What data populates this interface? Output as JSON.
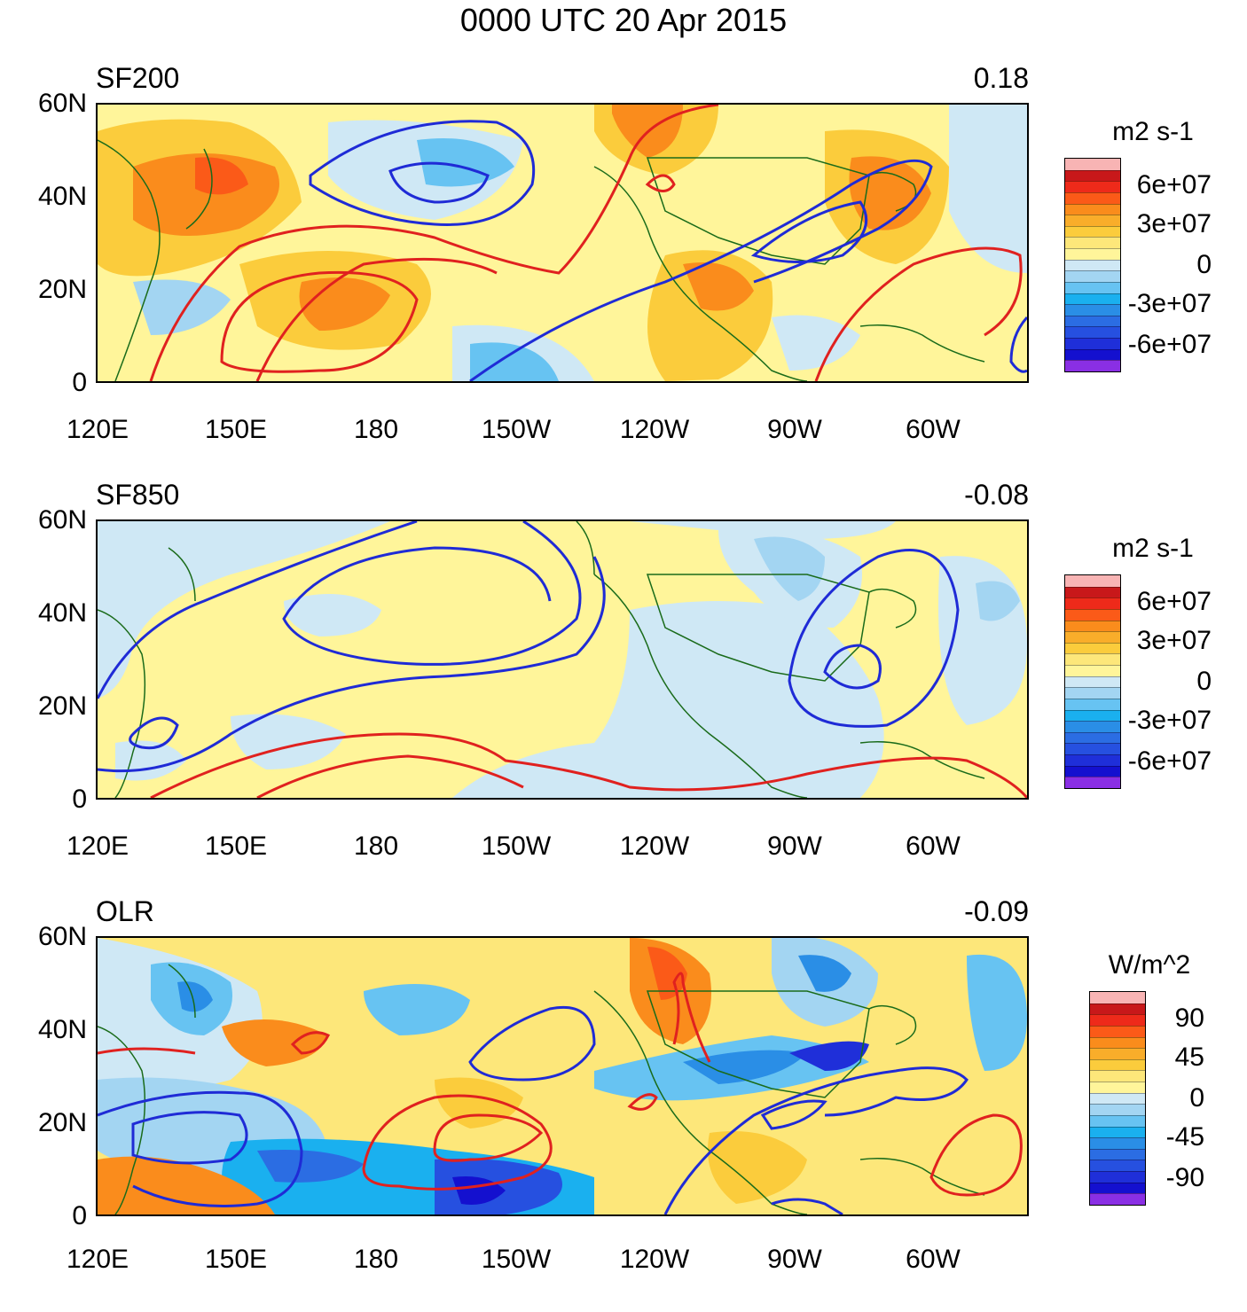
{
  "title": "0000 UTC 20 Apr 2015",
  "x_tick_labels": [
    "120E",
    "150E",
    "180",
    "150W",
    "120W",
    "90W",
    "60W"
  ],
  "y_tick_labels": [
    "60N",
    "40N",
    "20N",
    "0"
  ],
  "panels": [
    {
      "name": "SF200",
      "left_label": "SF200",
      "right_label": "0.18",
      "colorbar": {
        "unit": "m2 s-1",
        "labels": [
          "6e+07",
          "3e+07",
          "0",
          "-3e+07",
          "-6e+07"
        ]
      }
    },
    {
      "name": "SF850",
      "left_label": "SF850",
      "right_label": "-0.08",
      "colorbar": {
        "unit": "m2 s-1",
        "labels": [
          "6e+07",
          "3e+07",
          "0",
          "-3e+07",
          "-6e+07"
        ]
      }
    },
    {
      "name": "OLR",
      "left_label": "OLR",
      "right_label": "-0.09",
      "colorbar": {
        "unit": "W/m^2",
        "labels": [
          "90",
          "45",
          "0",
          "-45",
          "-90"
        ]
      }
    }
  ],
  "colors": {
    "positive_contour": "#e0211f",
    "negative_contour": "#1f2bd6",
    "coastline": "#1a6b1a",
    "colorbar_scale": [
      "#f8b4b4",
      "#c8181a",
      "#ee2a1a",
      "#fb5a18",
      "#fa8c1c",
      "#f9ad2a",
      "#fbcc3c",
      "#fde77a",
      "#fff59a",
      "#cfe8f5",
      "#a3d5f2",
      "#67c3f2",
      "#1ab0ef",
      "#2a8ee6",
      "#2b6de3",
      "#2650e0",
      "#1f2fd9",
      "#1410cf",
      "#8a2fe4"
    ]
  }
}
